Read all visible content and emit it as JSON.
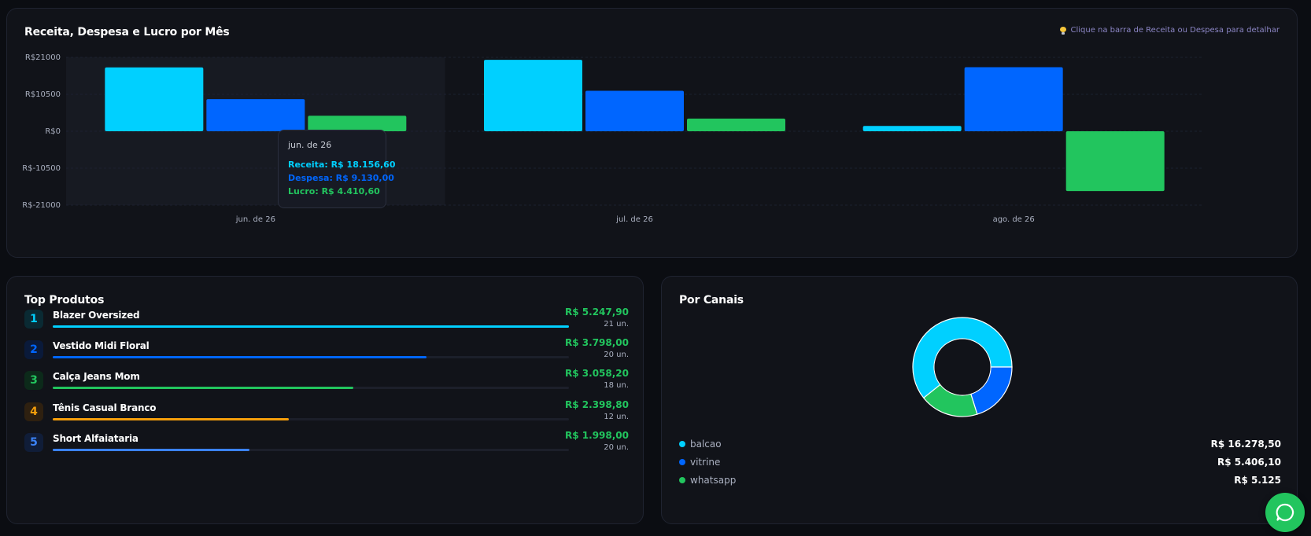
{
  "revenue_chart": {
    "title": "Receita, Despesa e Lucro por Mês",
    "hint": "Clique na barra de Receita ou Despesa para detalhar",
    "hint_icon": "lightbulb-icon",
    "chart_data": {
      "type": "bar",
      "title": "Receita, Despesa e Lucro por Mês",
      "categories": [
        "jun. de 26",
        "jul. de 26",
        "ago. de 26"
      ],
      "series": [
        {
          "key": "receita",
          "color": "#00d0ff",
          "values": [
            18156.6,
            20300,
            1500
          ]
        },
        {
          "key": "despesa",
          "color": "#0066ff",
          "values": [
            9130.0,
            11500,
            18200
          ]
        },
        {
          "key": "lucro",
          "color": "#22c55e",
          "values": [
            4410.6,
            3600,
            -17000
          ]
        }
      ],
      "yticks": [
        "R$21000",
        "R$10500",
        "R$0",
        "R$-10500",
        "R$-21000"
      ],
      "ylim": [
        -21000,
        21000
      ],
      "grid": true,
      "highlighted_category": 0
    },
    "tooltip": {
      "title": "jun. de 26",
      "lines": [
        {
          "text": "Receita: R$ 18.156,60",
          "color": "#00d0ff"
        },
        {
          "text": "Despesa: R$ 9.130,00",
          "color": "#0066ff"
        },
        {
          "text": "Lucro: R$ 4.410,60",
          "color": "#22c55e"
        }
      ]
    }
  },
  "top_products": {
    "title": "Top Produtos",
    "items": [
      {
        "rank": "1",
        "name": "Blazer Oversized",
        "value": "R$ 5.247,90",
        "units": "21 un.",
        "share": 1.0,
        "color": "#00d0ff",
        "badge_bg": "#0a2a33"
      },
      {
        "rank": "2",
        "name": "Vestido Midi Floral",
        "value": "R$ 3.798,00",
        "units": "20 un.",
        "share": 0.724,
        "color": "#0066ff",
        "badge_bg": "#0a1a3a"
      },
      {
        "rank": "3",
        "name": "Calça Jeans Mom",
        "value": "R$ 3.058,20",
        "units": "18 un.",
        "share": 0.583,
        "color": "#22c55e",
        "badge_bg": "#0c2a1a"
      },
      {
        "rank": "4",
        "name": "Tênis Casual Branco",
        "value": "R$ 2.398,80",
        "units": "12 un.",
        "share": 0.457,
        "color": "#f59e0b",
        "badge_bg": "#2e2010"
      },
      {
        "rank": "5",
        "name": "Short Alfaiataria",
        "value": "R$ 1.998,00",
        "units": "20 un.",
        "share": 0.381,
        "color": "#3b82f6",
        "badge_bg": "#101d38"
      }
    ]
  },
  "channels": {
    "title": "Por Canais",
    "chart_data": {
      "type": "pie",
      "slices": [
        {
          "name": "balcao",
          "value": 16278.5,
          "label": "R$ 16.278,50",
          "color": "#00d0ff"
        },
        {
          "name": "vitrine",
          "value": 5406.1,
          "label": "R$ 5.406,10",
          "color": "#0066ff"
        },
        {
          "name": "whatsapp",
          "value": 5125,
          "label": "R$ 5.125",
          "color": "#22c55e"
        }
      ]
    }
  },
  "fab": {
    "icon": "whatsapp-icon"
  }
}
